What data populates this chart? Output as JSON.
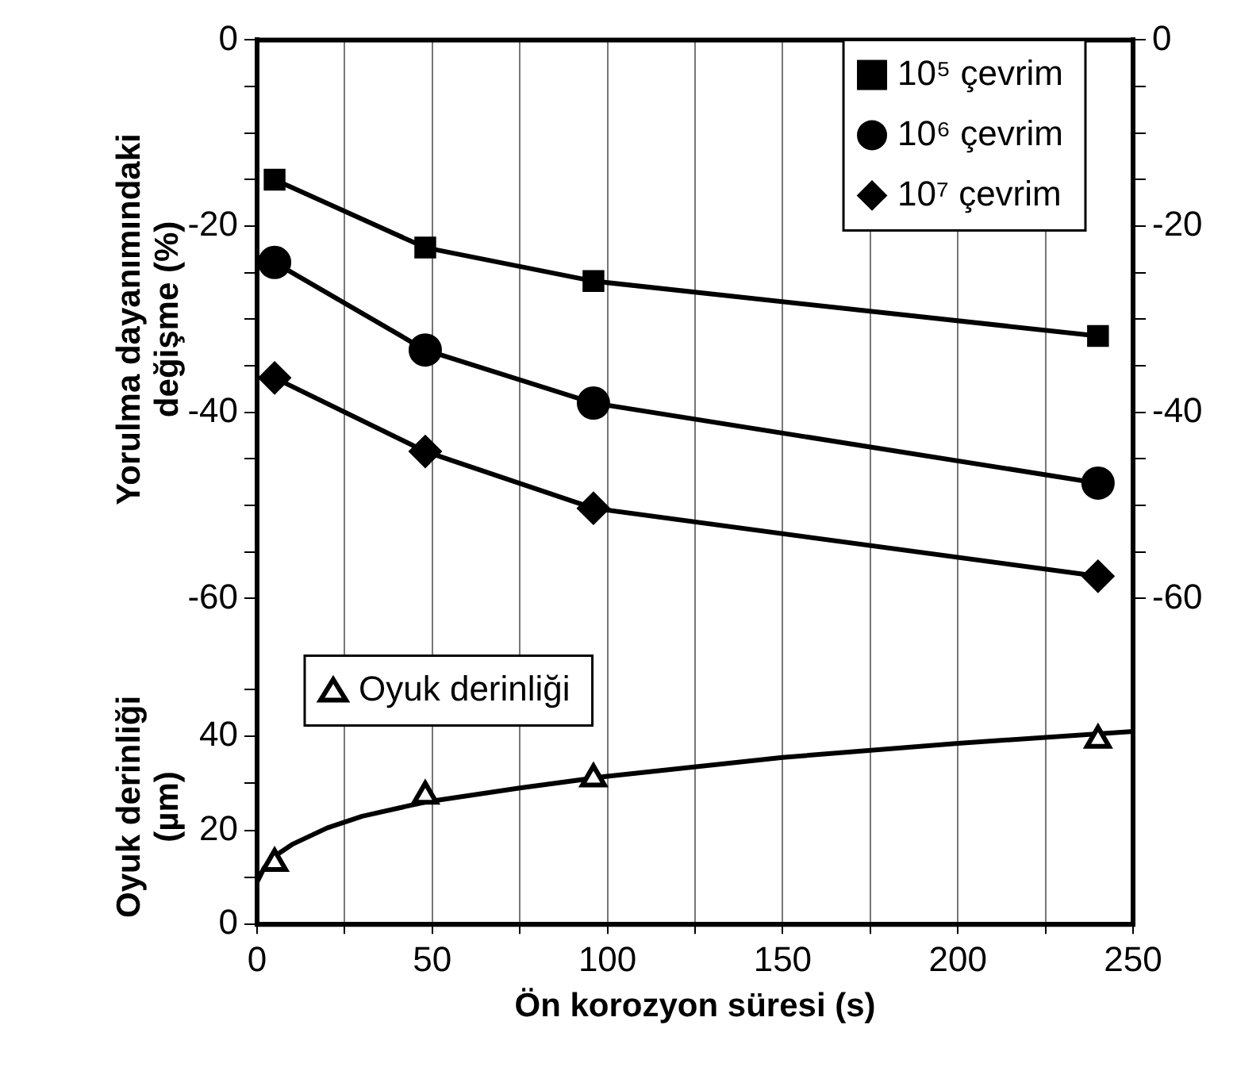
{
  "chart_data": {
    "type": "line",
    "xlabel": "Ön korozyon süresi (s)",
    "ylabel": "Yorulma dayanımındaki değişme (%)",
    "y3label": "Oyuk derinliği (µm)",
    "xlim": [
      0,
      250
    ],
    "xticks": [
      0,
      {
        "value": 25,
        "label": null
      },
      50,
      {
        "value": 75,
        "label": null
      },
      100,
      {
        "value": 125,
        "label": null
      },
      150,
      {
        "value": 175,
        "label": null
      },
      200,
      {
        "value": 225,
        "label": null
      },
      250
    ],
    "ylim": [
      -95,
      0
    ],
    "yticks": [
      0,
      {
        "value": -5,
        "label": null
      },
      {
        "value": -10,
        "label": null
      },
      {
        "value": -15,
        "label": null
      },
      -20,
      {
        "value": -25,
        "label": null
      },
      {
        "value": -30,
        "label": null
      },
      {
        "value": -35,
        "label": null
      },
      -40,
      {
        "value": -45,
        "label": null
      },
      {
        "value": -50,
        "label": null
      },
      {
        "value": -55,
        "label": null
      },
      -60
    ],
    "y2lim": [
      -95,
      0
    ],
    "y2ticks": [
      0,
      {
        "value": -5,
        "label": null
      },
      {
        "value": -10,
        "label": null
      },
      {
        "value": -15,
        "label": null
      },
      -20,
      {
        "value": -25,
        "label": null
      },
      {
        "value": -30,
        "label": null
      },
      {
        "value": -35,
        "label": null
      },
      -40,
      {
        "value": -45,
        "label": null
      },
      {
        "value": -50,
        "label": null
      },
      {
        "value": -55,
        "label": null
      },
      -60
    ],
    "y3lim": [
      0,
      188
    ],
    "y3ticks": [
      0,
      {
        "value": 10,
        "label": null
      },
      20,
      {
        "value": 30,
        "label": null
      },
      40,
      {
        "value": 50,
        "label": null
      }
    ],
    "grid": "x",
    "legend": "top right",
    "series": [
      {
        "name": "10⁵ çevrim",
        "color": "#000000",
        "marker": "square",
        "x": [
          5,
          48,
          96,
          240
        ],
        "values": [
          -15,
          -22.3,
          -25.9,
          -31.8
        ]
      },
      {
        "name": "10⁶ çevrim",
        "color": "#000000",
        "marker": "circle",
        "x": [
          5,
          48,
          96,
          240
        ],
        "values": [
          -23.9,
          -33.3,
          -39,
          -47.6
        ]
      },
      {
        "name": "10⁷ çevrim",
        "color": "#000000",
        "marker": "diamond",
        "x": [
          5,
          48,
          96,
          240
        ],
        "values": [
          -36.3,
          -44.2,
          -50.3,
          -57.6
        ]
      },
      {
        "name": "Oyuk derinliği",
        "type": "scatter",
        "axis": "y3",
        "color": "#000000",
        "marker": "triangle",
        "x": [
          5,
          48,
          96,
          240
        ],
        "values": [
          13,
          27.3,
          31,
          39.2
        ]
      },
      {
        "type": "line",
        "axis": "y3",
        "color": "#000000",
        "marker": "none",
        "x": [
          0,
          2,
          5,
          10,
          20,
          30,
          48,
          75,
          100,
          150,
          200,
          250
        ],
        "values": [
          9,
          12,
          14.5,
          17,
          20.5,
          23,
          26,
          29,
          31.5,
          35.5,
          38.5,
          41
        ]
      }
    ]
  }
}
